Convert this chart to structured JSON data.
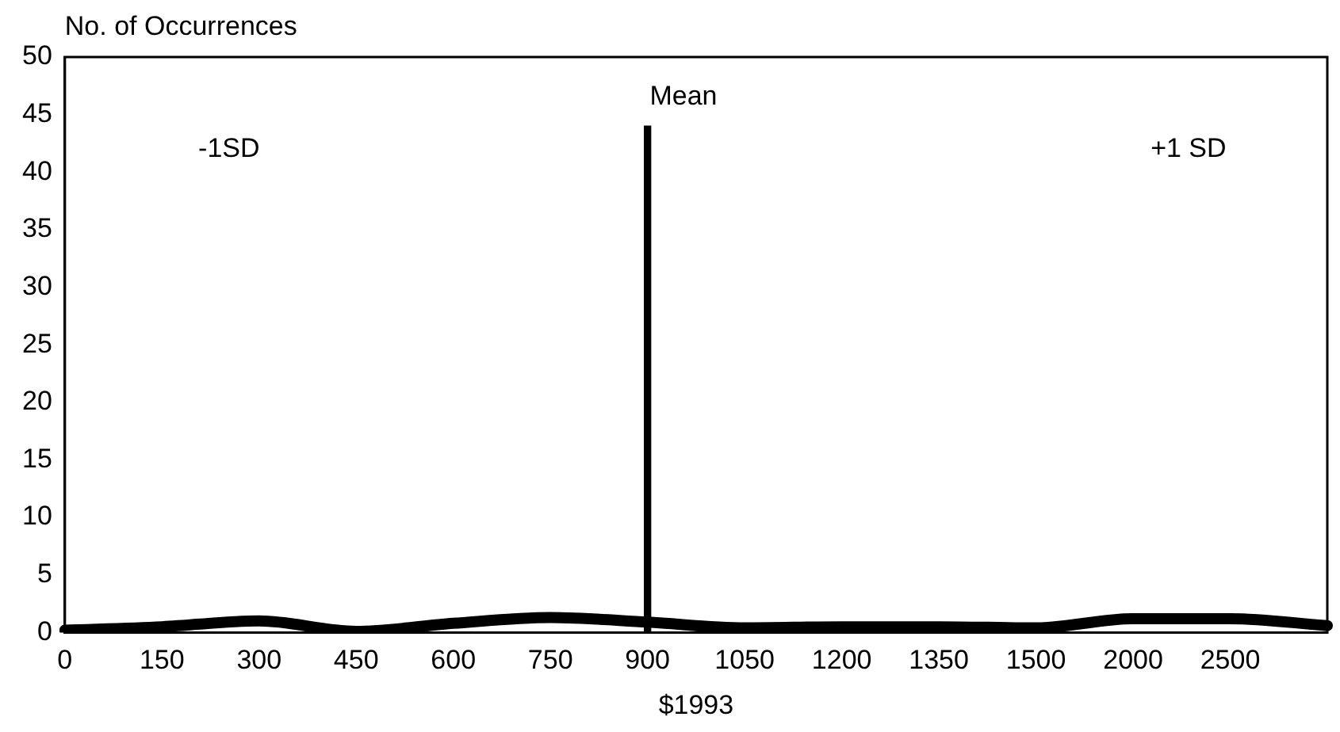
{
  "chart_data": {
    "type": "line",
    "xlabel": "$1993",
    "ylabel": "No. of Occurrences",
    "categories": [
      "0",
      "150",
      "300",
      "450",
      "600",
      "750",
      "900",
      "1050",
      "1200",
      "1350",
      "1500",
      "2000",
      "2500",
      null
    ],
    "series": [
      {
        "color": "#000000",
        "values": [
          0.2,
          0.5,
          1.0,
          0.1,
          0.8,
          1.3,
          0.9,
          0.4,
          0.5,
          0.5,
          0.4,
          1.2,
          1.2,
          0.6
        ]
      },
      {
        "type": "bar",
        "color": "#000000",
        "values": [
          null,
          null,
          null,
          null,
          null,
          null,
          44,
          null,
          null,
          null,
          null,
          null,
          null,
          null
        ]
      }
    ],
    "ylim": [
      0,
      50
    ],
    "yticks": [
      0,
      5,
      10,
      15,
      20,
      25,
      30,
      35,
      40,
      45,
      50
    ],
    "grid": false,
    "annotations": [
      "-1SD",
      "Mean",
      "+1 SD"
    ]
  }
}
